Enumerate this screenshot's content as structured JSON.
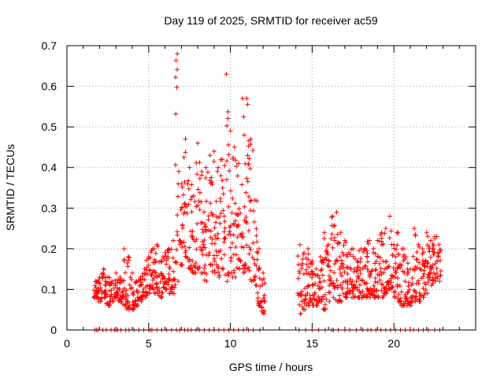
{
  "chart_data": {
    "type": "scatter",
    "title": "Day 119 of 2025, SRMTID for receiver ac59",
    "xlabel": "GPS time / hours",
    "ylabel": "SRMTID / TECUs",
    "xlim": [
      0,
      25
    ],
    "ylim": [
      0,
      0.7
    ],
    "xticks": [
      "0",
      "5",
      "10",
      "15",
      "20"
    ],
    "yticks": [
      "0",
      "0.1",
      "0.2",
      "0.3",
      "0.4",
      "0.5",
      "0.6",
      "0.7"
    ],
    "grid": true,
    "marker": "+",
    "color": "#ff0000",
    "series": [
      {
        "name": "SRMTID",
        "envelope_hours": [
          1.75,
          2.0,
          2.25,
          2.5,
          2.75,
          3.0,
          3.25,
          3.5,
          3.75,
          4.0,
          4.25,
          4.5,
          4.75,
          5.0,
          5.25,
          5.5,
          5.75,
          6.0,
          6.25,
          6.5,
          6.75,
          7.0,
          7.25,
          7.5,
          7.75,
          8.0,
          8.25,
          8.5,
          8.75,
          9.0,
          9.25,
          9.5,
          9.75,
          10.0,
          10.25,
          10.5,
          10.75,
          11.0,
          11.25,
          11.5,
          11.75,
          12.0,
          14.25,
          14.5,
          14.75,
          15.0,
          15.25,
          15.5,
          15.75,
          16.0,
          16.25,
          16.5,
          16.75,
          17.0,
          17.25,
          17.5,
          17.75,
          18.0,
          18.25,
          18.5,
          18.75,
          19.0,
          19.25,
          19.5,
          19.75,
          20.0,
          20.25,
          20.5,
          20.75,
          21.0,
          21.25,
          21.5,
          21.75,
          22.0,
          22.25,
          22.5,
          22.75
        ],
        "envelope_min": [
          0.08,
          0.07,
          0.08,
          0.06,
          0.07,
          0.08,
          0.07,
          0.06,
          0.05,
          0.05,
          0.06,
          0.07,
          0.08,
          0.09,
          0.1,
          0.09,
          0.08,
          0.1,
          0.09,
          0.09,
          0.12,
          0.16,
          0.18,
          0.15,
          0.14,
          0.15,
          0.14,
          0.12,
          0.16,
          0.14,
          0.13,
          0.15,
          0.12,
          0.14,
          0.13,
          0.15,
          0.14,
          0.15,
          0.12,
          0.11,
          0.06,
          0.04,
          0.04,
          0.05,
          0.06,
          0.06,
          0.06,
          0.07,
          0.05,
          0.07,
          0.08,
          0.07,
          0.07,
          0.08,
          0.09,
          0.08,
          0.08,
          0.08,
          0.08,
          0.08,
          0.08,
          0.08,
          0.08,
          0.09,
          0.1,
          0.08,
          0.07,
          0.06,
          0.06,
          0.06,
          0.07,
          0.07,
          0.08,
          0.09,
          0.11,
          0.12,
          0.12
        ],
        "envelope_max": [
          0.12,
          0.13,
          0.15,
          0.13,
          0.12,
          0.14,
          0.13,
          0.2,
          0.18,
          0.14,
          0.12,
          0.13,
          0.15,
          0.18,
          0.2,
          0.21,
          0.17,
          0.19,
          0.2,
          0.22,
          0.68,
          0.36,
          0.47,
          0.4,
          0.33,
          0.46,
          0.39,
          0.4,
          0.43,
          0.44,
          0.4,
          0.42,
          0.63,
          0.49,
          0.45,
          0.41,
          0.57,
          0.57,
          0.47,
          0.32,
          0.2,
          0.14,
          0.21,
          0.19,
          0.2,
          0.17,
          0.15,
          0.18,
          0.24,
          0.21,
          0.28,
          0.29,
          0.24,
          0.22,
          0.19,
          0.2,
          0.17,
          0.2,
          0.2,
          0.22,
          0.2,
          0.22,
          0.24,
          0.25,
          0.28,
          0.21,
          0.24,
          0.2,
          0.18,
          0.15,
          0.25,
          0.21,
          0.2,
          0.24,
          0.22,
          0.23,
          0.21
        ]
      }
    ],
    "baseline_hours": [
      1.7,
      1.8,
      1.9,
      2.2,
      2.4,
      2.7,
      2.9,
      3.0,
      3.1,
      3.3,
      3.6,
      3.8,
      4.1,
      4.4,
      4.7,
      5.0,
      5.1,
      5.2,
      5.5,
      5.8,
      6.1,
      6.4,
      6.7,
      6.9,
      7.2,
      7.4,
      7.6,
      7.9,
      8.1,
      8.4,
      8.7,
      9.0,
      9.3,
      9.6,
      9.9,
      10.2,
      10.5,
      10.8,
      11.1,
      11.4,
      11.8,
      14.2,
      14.6,
      15.0,
      15.4,
      15.8,
      16.2,
      16.3,
      16.6,
      17.0,
      17.3,
      17.7,
      18.1,
      18.4,
      18.6,
      18.9,
      19.2,
      19.5,
      19.8,
      20.1,
      20.4,
      20.7,
      21.0,
      21.2,
      21.5,
      21.8,
      22.1,
      22.5,
      22.8
    ]
  }
}
